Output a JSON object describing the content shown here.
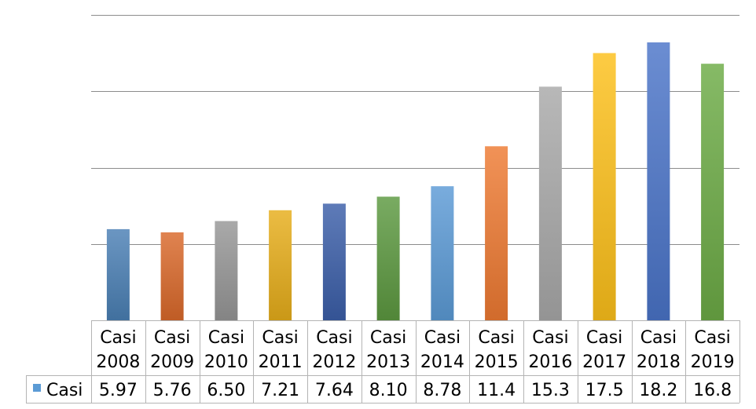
{
  "chart_data": {
    "type": "bar",
    "categories": [
      "Casi 2008",
      "Casi 2009",
      "Casi 2010",
      "Casi 2011",
      "Casi 2012",
      "Casi 2013",
      "Casi 2014",
      "Casi 2015",
      "Casi 2016",
      "Casi 2017",
      "Casi 2018",
      "Casi 2019"
    ],
    "category_lines": [
      [
        "Casi",
        "2008"
      ],
      [
        "Casi",
        "2009"
      ],
      [
        "Casi",
        "2010"
      ],
      [
        "Casi",
        "2011"
      ],
      [
        "Casi",
        "2012"
      ],
      [
        "Casi",
        "2013"
      ],
      [
        "Casi",
        "2014"
      ],
      [
        "Casi",
        "2015"
      ],
      [
        "Casi",
        "2016"
      ],
      [
        "Casi",
        "2017"
      ],
      [
        "Casi",
        "2018"
      ],
      [
        "Casi",
        "2019"
      ]
    ],
    "series": [
      {
        "name": "Casi",
        "values": [
          5.97,
          5.76,
          6.5,
          7.21,
          7.64,
          8.1,
          8.78,
          11.4,
          15.3,
          17.5,
          18.2,
          16.8
        ],
        "value_labels": [
          "5.97",
          "5.76",
          "6.50",
          "7.21",
          "7.64",
          "8.10",
          "8.78",
          "11.4",
          "15.3",
          "17.5",
          "18.2",
          "16.8"
        ]
      }
    ],
    "bar_colors": [
      "#4a7fb4",
      "#d9682a",
      "#969696",
      "#e6ad1a",
      "#3b5ea8",
      "#5c9840",
      "#5b9ad6",
      "#ee7a32",
      "#a8a8a8",
      "#fcc01a",
      "#4a74c8",
      "#6cab45"
    ],
    "legend_marker_color": "#5b9bd5",
    "ylim": [
      0,
      20
    ],
    "grid": true,
    "gridline_values": [
      5,
      10,
      15,
      20
    ],
    "y_tick_labels_shown": false,
    "data_table": true,
    "title": "",
    "xlabel": "",
    "ylabel": ""
  }
}
